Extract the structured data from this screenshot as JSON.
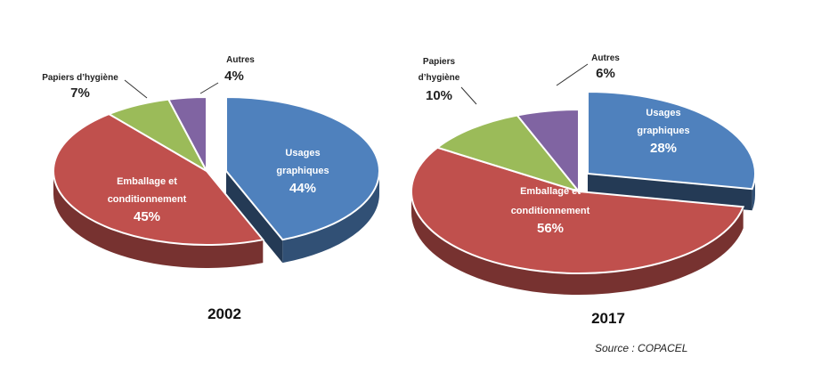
{
  "chart_data": [
    {
      "type": "pie",
      "title": "2002",
      "slices": [
        {
          "label": "Usages graphiques",
          "value": 44,
          "display": "44%",
          "color": "#4f81bd"
        },
        {
          "label": "Emballage et conditionnement",
          "value": 45,
          "display": "45%",
          "color": "#c0504d"
        },
        {
          "label": "Papiers d’hygiène",
          "value": 7,
          "display": "7%",
          "color": "#9bbb59"
        },
        {
          "label": "Autres",
          "value": 4,
          "display": "4%",
          "color": "#8064a2"
        }
      ]
    },
    {
      "type": "pie",
      "title": "2017",
      "slices": [
        {
          "label": "Usages graphiques",
          "value": 28,
          "display": "28%",
          "color": "#4f81bd"
        },
        {
          "label": "Emballage et conditionnement",
          "value": 56,
          "display": "56%",
          "color": "#c0504d"
        },
        {
          "label": "Papiers d’hygiène",
          "value": 10,
          "display": "10%",
          "color": "#9bbb59"
        },
        {
          "label": "Autres",
          "value": 6,
          "display": "6%",
          "color": "#8064a2"
        }
      ]
    }
  ],
  "source": "Source : COPACEL"
}
